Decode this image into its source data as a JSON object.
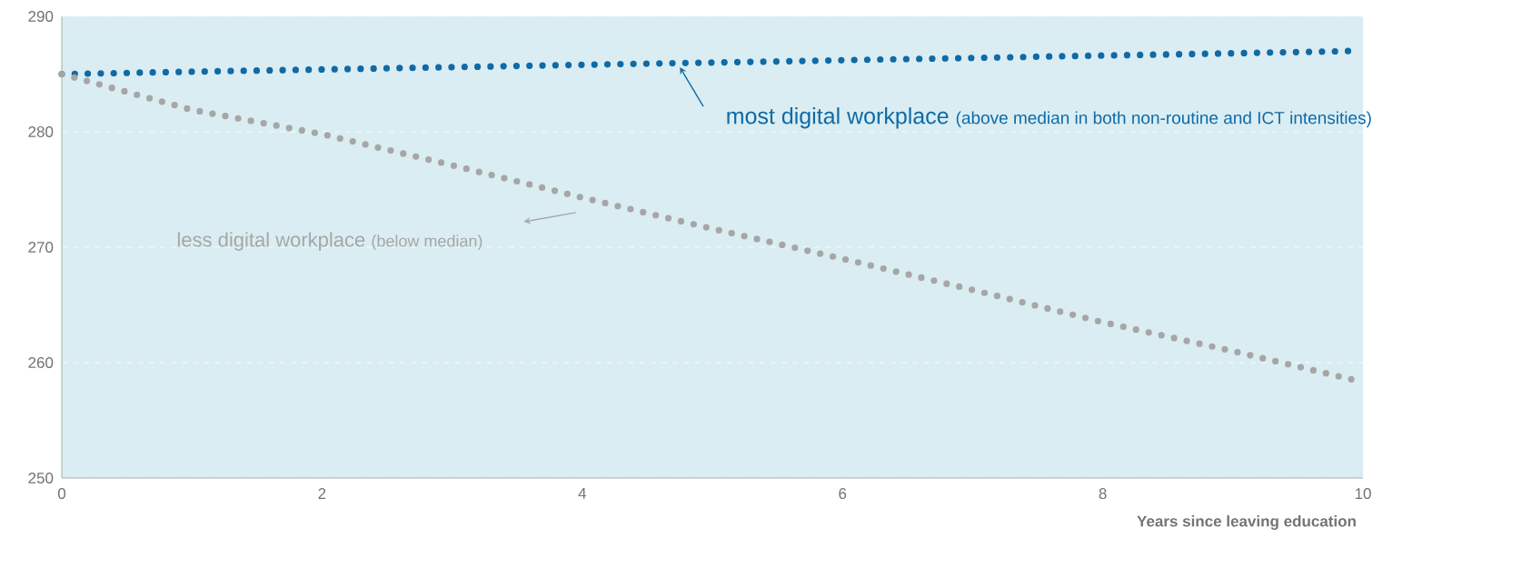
{
  "chart_data": {
    "type": "line",
    "xlabel": "Years since leaving education",
    "x": [
      0,
      1,
      2,
      3,
      4,
      5,
      6,
      7,
      8,
      9,
      9.93
    ],
    "series": [
      {
        "name": "most digital workplace",
        "color": "#0f6aa6",
        "values": [
          285,
          285.2,
          285.4,
          285.6,
          285.8,
          286,
          286.2,
          286.4,
          286.6,
          286.8,
          287
        ]
      },
      {
        "name": "less digital workplace",
        "color": "#a6a6a6",
        "values": [
          285,
          281.9,
          279.8,
          277.1,
          274.3,
          271.6,
          269,
          266.3,
          263.5,
          261,
          258.5
        ]
      }
    ],
    "annotations": [
      "(above median in both non-routine and ICT intensities)",
      "(below median)"
    ],
    "xlim": [
      0,
      10
    ],
    "ylim": [
      250,
      290
    ],
    "xticks": [
      0,
      2,
      4,
      6,
      8,
      10
    ],
    "yticks": [
      250,
      260,
      270,
      280,
      290
    ],
    "grid": "y",
    "marker": "none",
    "line_style": "dotted"
  }
}
